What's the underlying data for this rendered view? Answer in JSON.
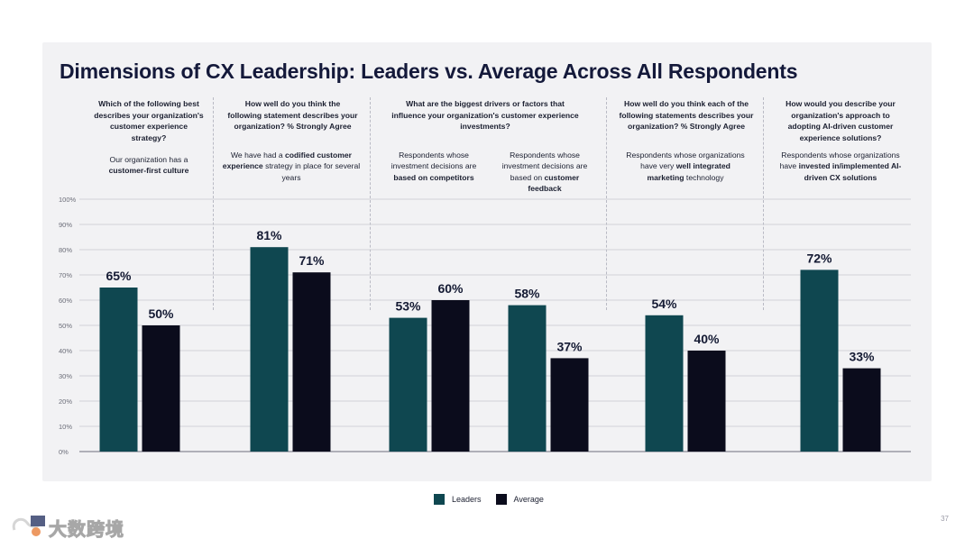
{
  "page": {
    "title": "Dimensions of CX Leadership: Leaders vs. Average Across All Respondents",
    "page_number": "37",
    "watermark": "大数跨境"
  },
  "colors": {
    "leaders": "#0f4750",
    "average": "#0b0c1c",
    "grid": "#c9c9d0"
  },
  "questions": [
    {
      "text": "Which of the following best describes your organization's customer experience strategy?",
      "descriptions": [
        {
          "parts": [
            {
              "t": "Our organization has a ",
              "b": false
            },
            {
              "t": "customer-first culture",
              "b": true
            }
          ]
        }
      ]
    },
    {
      "text": "How well do you think the following statement describes your organization? % Strongly Agree",
      "descriptions": [
        {
          "parts": [
            {
              "t": "We have had a ",
              "b": false
            },
            {
              "t": "codified customer experience",
              "b": true
            },
            {
              "t": " strategy in place for several years",
              "b": false
            }
          ]
        }
      ]
    },
    {
      "text": "What are the biggest drivers or factors that influence your organization's customer experience investments?",
      "descriptions": [
        {
          "parts": [
            {
              "t": "Respondents whose investment decisions are ",
              "b": false
            },
            {
              "t": "based on competitors",
              "b": true
            }
          ]
        },
        {
          "parts": [
            {
              "t": "Respondents whose investment decisions are based on ",
              "b": false
            },
            {
              "t": "customer feedback",
              "b": true
            }
          ]
        }
      ]
    },
    {
      "text": "How well do you think each of the following statements describes your organization? % Strongly Agree",
      "descriptions": [
        {
          "parts": [
            {
              "t": "Respondents whose organizations have very ",
              "b": false
            },
            {
              "t": "well integrated marketing",
              "b": true
            },
            {
              "t": " technology",
              "b": false
            }
          ]
        }
      ]
    },
    {
      "text": "How would you describe your organization's approach to adopting AI-driven customer experience solutions?",
      "descriptions": [
        {
          "parts": [
            {
              "t": "Respondents  whose organizations have ",
              "b": false
            },
            {
              "t": "invested in/implemented AI-driven CX solutions",
              "b": true
            }
          ]
        }
      ]
    }
  ],
  "chart_data": {
    "type": "bar",
    "ylim": [
      0,
      100
    ],
    "yticks": [
      "0%",
      "10%",
      "20%",
      "30%",
      "40%",
      "50%",
      "60%",
      "70%",
      "80%",
      "90%",
      "100%"
    ],
    "categories": [
      "customer-first culture",
      "codified customer experience strategy",
      "based on competitors",
      "based on customer feedback",
      "well integrated marketing technology",
      "invested in/implemented AI-driven CX solutions"
    ],
    "series": [
      {
        "name": "Leaders",
        "values": [
          65,
          81,
          53,
          58,
          54,
          72
        ],
        "labels": [
          "65%",
          "81%",
          "53%",
          "58%",
          "54%",
          "72%"
        ]
      },
      {
        "name": "Average",
        "values": [
          50,
          71,
          60,
          37,
          40,
          33
        ],
        "labels": [
          "50%",
          "71%",
          "60%",
          "37%",
          "40%",
          "33%"
        ]
      }
    ],
    "legend": [
      "Leaders",
      "Average"
    ]
  }
}
